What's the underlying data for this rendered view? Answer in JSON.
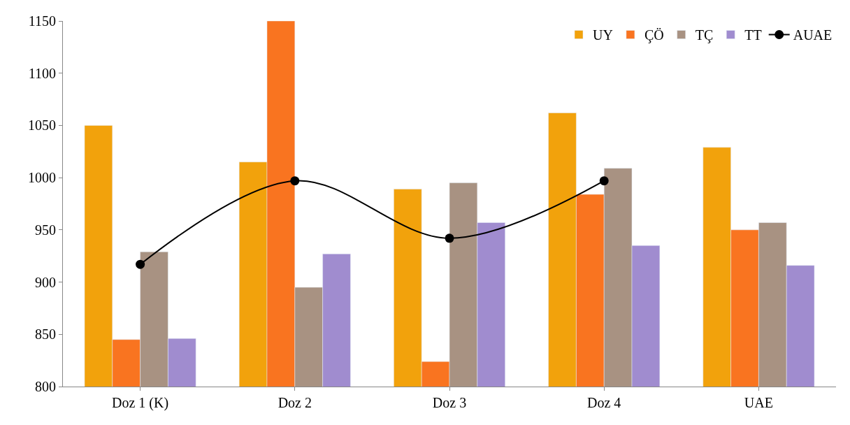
{
  "chart_data": {
    "type": "bar",
    "categories": [
      "Doz 1 (K)",
      "Doz 2",
      "Doz 3",
      "Doz 4",
      "UAE"
    ],
    "series": [
      {
        "name": "UY",
        "color": "#f2a20c",
        "values": [
          1050,
          1015,
          989,
          1062,
          1029
        ]
      },
      {
        "name": "ÇÖ",
        "color": "#f97420",
        "values": [
          845,
          1150,
          824,
          984,
          950
        ]
      },
      {
        "name": "TÇ",
        "color": "#a89282",
        "values": [
          929,
          895,
          995,
          1009,
          957
        ]
      },
      {
        "name": "TT",
        "color": "#a08ccf",
        "values": [
          846,
          927,
          957,
          935,
          916
        ]
      },
      {
        "name": "AUAE",
        "type": "line",
        "color": "#000000",
        "marker": "circle",
        "values": [
          917,
          997,
          942,
          997,
          null
        ]
      }
    ],
    "ylim": [
      800,
      1150
    ],
    "yticks": [
      800,
      850,
      900,
      950,
      1000,
      1050,
      1100,
      1150
    ],
    "legend": "top right"
  }
}
